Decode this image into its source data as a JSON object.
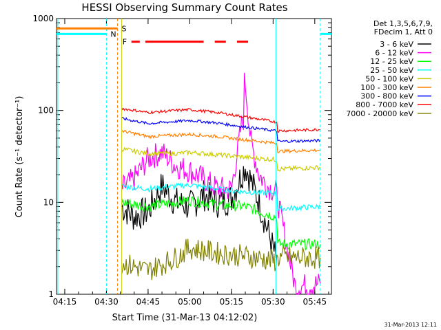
{
  "chart_data": {
    "type": "line",
    "title": "HESSI Observing Summary Count Rates",
    "xlabel": "Start Time (31-Mar-13 04:12:02)",
    "ylabel": "Count Rate (s⁻¹ detector⁻¹)",
    "x_scale": "time",
    "x_range": [
      "04:12:02",
      "05:51:00"
    ],
    "x_ticks": [
      "04:15",
      "04:30",
      "04:45",
      "05:00",
      "05:15",
      "05:30",
      "05:45"
    ],
    "y_scale": "log",
    "ylim": [
      1,
      1000
    ],
    "y_ticks": [
      "1",
      "10",
      "100",
      "1000"
    ],
    "legend_header": [
      "Det 1,3,5,6,7,9,",
      "FDecim 1, Att 0"
    ],
    "legend_position": "right",
    "series": [
      {
        "name": "3 - 6 keV",
        "color": "#000000",
        "x": [
          "04:35:30",
          "04:40",
          "04:45",
          "04:50",
          "04:55",
          "05:00",
          "05:05",
          "05:10",
          "05:15",
          "05:20",
          "05:25",
          "05:28",
          "05:31"
        ],
        "values": [
          9,
          7,
          8,
          15,
          10,
          9,
          12,
          10,
          11,
          25,
          10,
          5,
          2.5
        ]
      },
      {
        "name": "6 - 12 keV",
        "color": "#ff00ff",
        "x": [
          "04:35:30",
          "04:40",
          "04:45",
          "04:50",
          "04:55",
          "05:00",
          "05:05",
          "05:10",
          "05:15",
          "05:19",
          "05:20",
          "05:22",
          "05:25",
          "05:28",
          "05:31",
          "05:38",
          "05:47"
        ],
        "values": [
          14,
          18,
          30,
          35,
          25,
          22,
          18,
          14,
          14,
          80,
          200,
          45,
          20,
          15,
          13,
          1.2,
          1.3
        ]
      },
      {
        "name": "12 - 25 keV",
        "color": "#00ff00",
        "x": [
          "04:35:30",
          "04:45",
          "04:55",
          "05:00",
          "05:10",
          "05:20",
          "05:25",
          "05:31",
          "05:32",
          "05:47"
        ],
        "values": [
          10,
          9,
          10,
          10.5,
          9.5,
          9,
          8,
          7,
          3.5,
          3.5
        ]
      },
      {
        "name": "25 - 50 keV",
        "color": "#00ffff",
        "x": [
          "04:35:30",
          "04:45",
          "04:55",
          "05:00",
          "05:10",
          "05:20",
          "05:31",
          "05:32",
          "05:47"
        ],
        "values": [
          15,
          14,
          15,
          15.5,
          14,
          13,
          12.5,
          8.5,
          9
        ]
      },
      {
        "name": "50 - 100 keV",
        "color": "#cccc00",
        "x": [
          "04:35:30",
          "04:45",
          "04:55",
          "05:00",
          "05:10",
          "05:20",
          "05:31",
          "05:32",
          "05:47"
        ],
        "values": [
          38,
          34,
          34,
          35,
          33,
          31,
          29,
          23,
          24
        ]
      },
      {
        "name": "100 - 300 keV",
        "color": "#ff8000",
        "x": [
          "04:35:30",
          "04:45",
          "04:55",
          "05:00",
          "05:10",
          "05:20",
          "05:31",
          "05:32",
          "05:47"
        ],
        "values": [
          60,
          52,
          54,
          55,
          52,
          48,
          44,
          36,
          37
        ]
      },
      {
        "name": "300 - 800 keV",
        "color": "#0000ff",
        "x": [
          "04:35:30",
          "04:45",
          "04:55",
          "05:00",
          "05:10",
          "05:20",
          "05:31",
          "05:32",
          "05:47"
        ],
        "values": [
          82,
          72,
          76,
          78,
          73,
          66,
          60,
          46,
          47
        ]
      },
      {
        "name": "800 - 7000 keV",
        "color": "#ff0000",
        "x": [
          "04:35:30",
          "04:45",
          "04:55",
          "05:00",
          "05:10",
          "05:20",
          "05:31",
          "05:32",
          "05:47"
        ],
        "values": [
          105,
          95,
          100,
          102,
          95,
          85,
          75,
          60,
          62
        ]
      },
      {
        "name": "7000 - 20000 keV",
        "color": "#808000",
        "x": [
          "04:35:30",
          "04:45",
          "04:55",
          "05:00",
          "05:10",
          "05:20",
          "05:31",
          "05:32",
          "05:47"
        ],
        "values": [
          2.2,
          1.8,
          2.5,
          3.2,
          2.8,
          2.6,
          2.3,
          2.5,
          2.5
        ]
      }
    ],
    "annotations": [
      {
        "label": "S",
        "color": "#ff8000",
        "x_start": "04:12:02",
        "x_end": "04:34:00",
        "y": 780
      },
      {
        "label": "N",
        "color": "#00ffff",
        "x_start": "04:12:02",
        "x_end": "04:30:00",
        "y": 680
      },
      {
        "label": "N",
        "color": "#00ffff",
        "x_start": "05:47:00",
        "x_end": "05:51:00",
        "y": 680
      },
      {
        "label": "F",
        "color": "#ff0000",
        "y": 560,
        "segments": [
          [
            "04:39",
            "04:42"
          ],
          [
            "04:44",
            "05:05"
          ],
          [
            "05:09",
            "05:13"
          ],
          [
            "05:17",
            "05:21"
          ]
        ]
      }
    ]
  },
  "footer": {
    "timestamp": "31-Mar-2013 12:11"
  }
}
